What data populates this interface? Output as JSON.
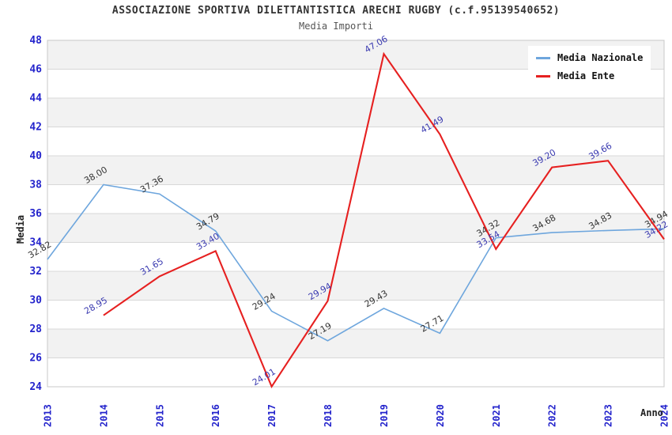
{
  "header": {
    "title": "ASSOCIAZIONE SPORTIVA DILETTANTISTICA ARECHI RUGBY (c.f.95139540652)",
    "subtitle": "Media Importi"
  },
  "axes": {
    "y_label": "Media",
    "x_label": "Anno",
    "y_ticks": [
      48,
      46,
      44,
      42,
      40,
      38,
      36,
      34,
      32,
      30,
      28,
      26,
      24
    ],
    "x_ticks": [
      2013,
      2014,
      2015,
      2016,
      2017,
      2018,
      2019,
      2020,
      2021,
      2022,
      2023,
      2024
    ]
  },
  "legend": {
    "items": [
      {
        "label": "Media Nazionale"
      },
      {
        "label": "Media Ente"
      }
    ]
  },
  "colors": {
    "band_fill": "#f2f2f2",
    "gridline": "#d8d8d8",
    "plot_border": "#c8c8c8",
    "tick_label": "#2424cc",
    "title_text": "#333333",
    "subtitle_text": "#555555",
    "nazionale_line": "#6ea6dd",
    "ente_line": "#e62020",
    "nazionale_point_label": "#333333",
    "ente_point_label": "#3939b0"
  },
  "chart_data": {
    "type": "line",
    "title": "ASSOCIAZIONE SPORTIVA DILETTANTISTICA ARECHI RUGBY (c.f.95139540652)",
    "subtitle": "Media Importi",
    "xlabel": "Anno",
    "ylabel": "Media",
    "ylim": [
      24,
      48
    ],
    "ytick_step": 2,
    "x": [
      2013,
      2014,
      2015,
      2016,
      2017,
      2018,
      2019,
      2020,
      2021,
      2022,
      2023,
      2024
    ],
    "grid": "horizontal gridlines every 2 units with alternating light-gray bands",
    "legend_position": "top-right",
    "series": [
      {
        "name": "Media Nazionale",
        "color": "#6ea6dd",
        "label_color": "#333333",
        "line_width": 1.6,
        "x": [
          2013,
          2014,
          2015,
          2016,
          2017,
          2018,
          2019,
          2020,
          2021,
          2022,
          2023,
          2024
        ],
        "values": [
          32.82,
          38.0,
          37.36,
          34.79,
          29.24,
          27.19,
          29.43,
          27.71,
          34.32,
          34.68,
          34.83,
          34.94
        ]
      },
      {
        "name": "Media Ente",
        "color": "#e62020",
        "label_color": "#3939b0",
        "line_width": 2.1,
        "x": [
          2014,
          2015,
          2016,
          2017,
          2018,
          2019,
          2020,
          2021,
          2022,
          2023,
          2024
        ],
        "values": [
          28.95,
          31.65,
          33.4,
          24.01,
          29.94,
          47.06,
          41.49,
          33.54,
          39.2,
          39.66,
          34.22
        ]
      }
    ]
  }
}
